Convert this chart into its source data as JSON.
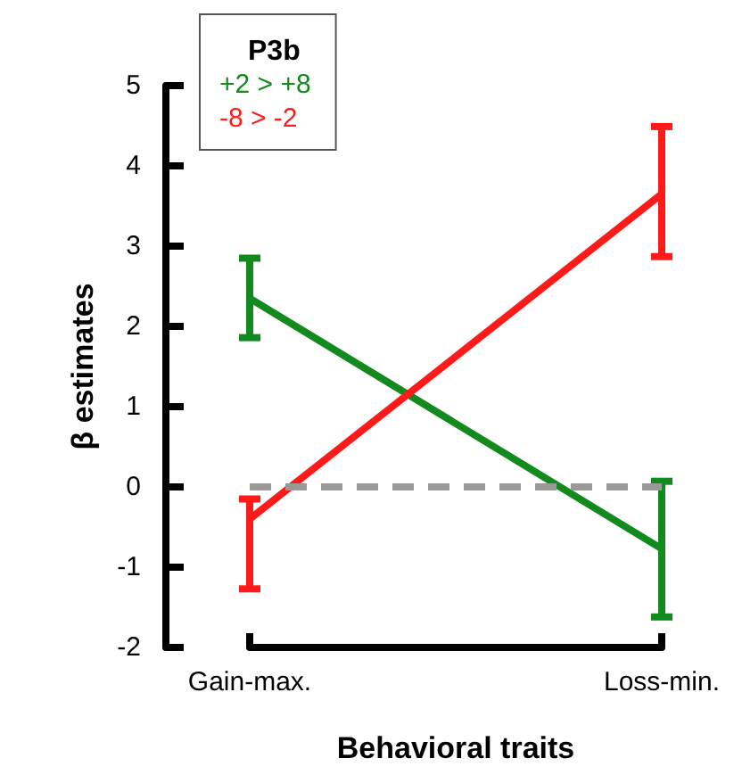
{
  "chart_data": {
    "type": "line",
    "xlabel": "Behavioral traits",
    "ylabel": "β estimates",
    "legend_title": "P3b",
    "categories": [
      "Gain-max.",
      "Loss-min."
    ],
    "series": [
      {
        "name": "+2 > +8",
        "color": "#138a1e",
        "values": [
          2.35,
          -0.77
        ],
        "errors": [
          [
            1.86,
            2.85
          ],
          [
            -1.62,
            0.07
          ]
        ]
      },
      {
        "name": "-8 > -2",
        "color": "#ff1a1a",
        "values": [
          -0.4,
          3.65
        ],
        "errors": [
          [
            -1.27,
            -0.15
          ],
          [
            2.87,
            4.49
          ]
        ]
      }
    ],
    "ylim": [
      -2,
      5
    ],
    "yticks": [
      -2,
      -1,
      0,
      1,
      2,
      3,
      4,
      5
    ],
    "ref_lines": [
      {
        "axis": "y",
        "value": 0,
        "color": "#999999",
        "line_style": "dashed"
      }
    ],
    "legend": "top left",
    "marker": "none",
    "line_style": "solid",
    "grid": false
  }
}
